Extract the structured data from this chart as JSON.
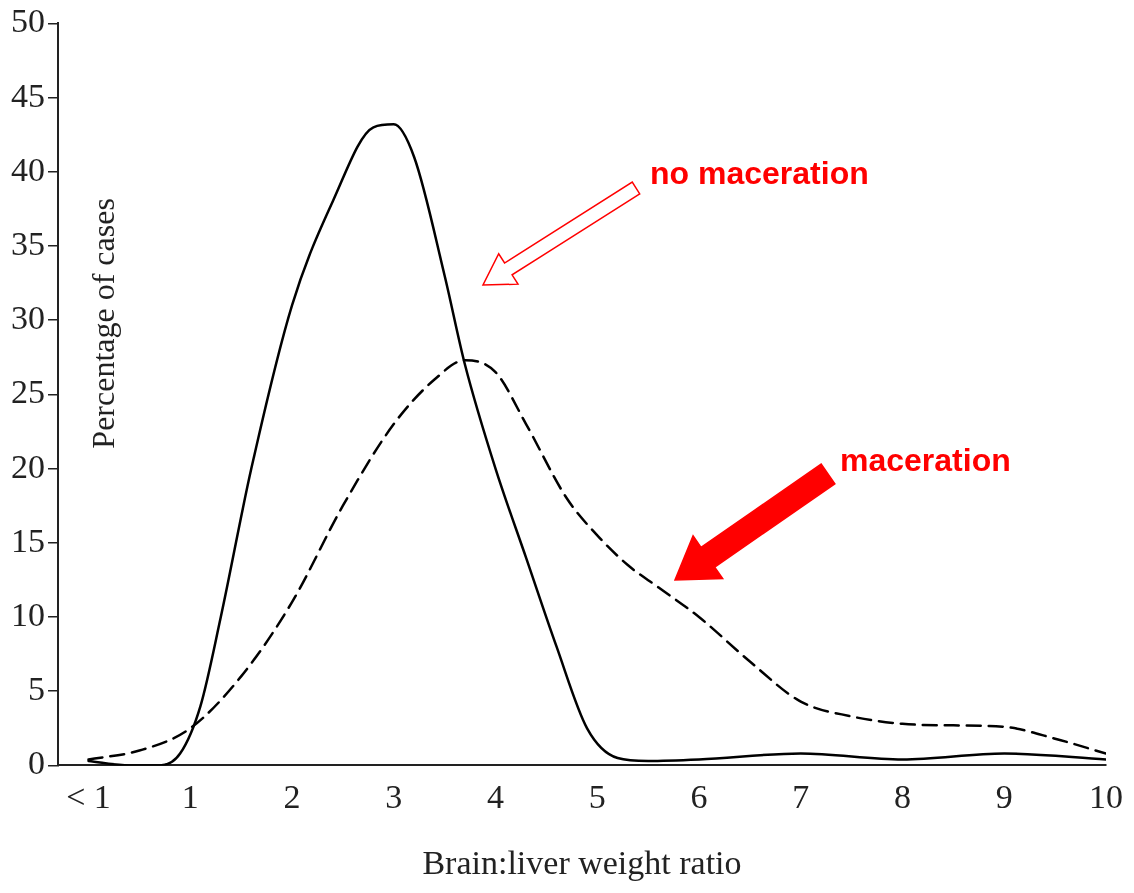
{
  "chart_data": {
    "type": "line",
    "xlabel": "Brain:liver weight ratio",
    "ylabel": "Percentage of cases",
    "xlim": [
      -0.3,
      10
    ],
    "xticks": [
      {
        "value": 0,
        "label": "< 1"
      },
      1,
      2,
      3,
      4,
      5,
      6,
      7,
      8,
      9,
      10
    ],
    "ylim": [
      0,
      50
    ],
    "yticks": [
      0,
      5,
      10,
      15,
      20,
      25,
      30,
      35,
      40,
      45,
      50
    ],
    "grid": false,
    "legend": false,
    "marker": "none",
    "series": [
      {
        "color": "#000000",
        "line_style": "solid",
        "x": [
          0,
          0.4,
          0.7,
          0.9,
          1.1,
          1.3,
          1.6,
          2,
          2.4,
          2.8,
          3,
          3.2,
          3.5,
          3.7,
          4,
          4.3,
          4.6,
          4.9,
          5.2,
          5.5,
          6,
          7,
          8,
          9,
          10
        ],
        "values": [
          0.3,
          0,
          0,
          0.8,
          4,
          10,
          20,
          31,
          38,
          43,
          43.2,
          41,
          33,
          27,
          20,
          14,
          8,
          2.5,
          0.5,
          0.3,
          0.4,
          0.8,
          0.4,
          0.8,
          0.4
        ]
      },
      {
        "color": "#000000",
        "line_style": "dashed",
        "x": [
          0,
          0.5,
          1,
          1.5,
          2,
          2.5,
          3,
          3.4,
          3.7,
          4,
          4.3,
          4.7,
          5,
          5.3,
          5.6,
          6,
          6.5,
          7,
          7.5,
          8,
          8.5,
          9,
          9.5,
          10
        ],
        "values": [
          0.4,
          1,
          2.5,
          6,
          11,
          17.5,
          23,
          26,
          27.3,
          26.5,
          23,
          18,
          15.5,
          13.5,
          12,
          10,
          7,
          4.3,
          3.3,
          2.8,
          2.7,
          2.6,
          1.8,
          0.8
        ]
      }
    ],
    "annotations": [
      "no maceration",
      "maceration"
    ]
  }
}
